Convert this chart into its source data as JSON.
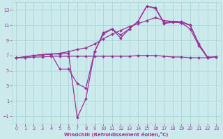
{
  "background_color": "#cceaec",
  "grid_color": "#aad8dc",
  "line_color": "#993399",
  "xlim": [
    -0.5,
    23.5
  ],
  "ylim": [
    -2,
    14
  ],
  "xticks": [
    0,
    1,
    2,
    3,
    4,
    5,
    6,
    7,
    8,
    9,
    10,
    11,
    12,
    13,
    14,
    15,
    16,
    17,
    18,
    19,
    20,
    21,
    22,
    23
  ],
  "yticks": [
    -1,
    1,
    3,
    5,
    7,
    9,
    11,
    13
  ],
  "xlabel": "Windchill (Refroidissement éolien,°C)",
  "lines": [
    [
      6.7,
      6.8,
      7.0,
      7.1,
      7.2,
      5.2,
      5.2,
      3.3,
      2.7,
      7.5,
      10.0,
      10.5,
      9.7,
      10.5,
      11.5,
      13.5,
      13.3,
      11.3,
      11.5,
      11.5,
      11.0,
      8.5,
      6.7,
      6.8
    ],
    [
      6.7,
      6.8,
      7.0,
      7.1,
      7.2,
      7.2,
      7.3,
      -1.2,
      1.3,
      7.5,
      9.8,
      10.5,
      9.3,
      10.5,
      11.5,
      13.5,
      13.2,
      11.2,
      11.4,
      11.3,
      10.5,
      8.3,
      6.7,
      6.8
    ],
    [
      6.7,
      6.8,
      7.0,
      7.1,
      7.2,
      7.3,
      7.5,
      7.8,
      8.0,
      8.5,
      9.2,
      9.8,
      10.3,
      10.8,
      11.2,
      11.6,
      12.0,
      11.6,
      11.5,
      11.3,
      11.0,
      8.5,
      6.8,
      6.8
    ],
    [
      6.7,
      6.7,
      6.8,
      6.8,
      6.9,
      6.9,
      6.9,
      6.9,
      6.9,
      6.9,
      6.9,
      6.9,
      6.9,
      6.9,
      7.0,
      7.0,
      7.0,
      6.9,
      6.8,
      6.8,
      6.7,
      6.7,
      6.7,
      6.8
    ]
  ]
}
